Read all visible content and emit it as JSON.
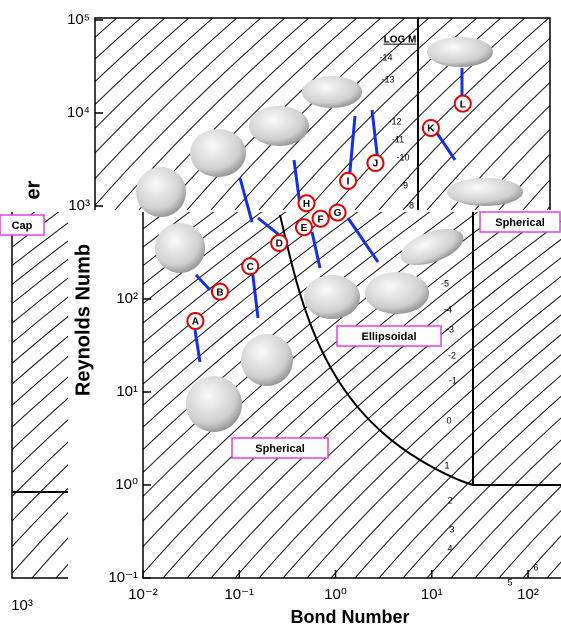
{
  "chart_data": {
    "type": "scatter",
    "x_label": "Bond Number",
    "y_label": "Reynolds Numb",
    "log_x": true,
    "log_y": true,
    "xlim": [
      0.01,
      200
    ],
    "ylim": [
      0.1,
      100000
    ],
    "xticks": [
      {
        "value": 0.01,
        "label": "10⁻²"
      },
      {
        "value": 0.1,
        "label": "10⁻¹"
      },
      {
        "value": 1,
        "label": "10⁰"
      },
      {
        "value": 10,
        "label": "10¹"
      },
      {
        "value": 100,
        "label": "10²"
      }
    ],
    "yticks": [
      {
        "value": 0.1,
        "label": "10⁻¹"
      },
      {
        "value": 1,
        "label": "10⁰"
      },
      {
        "value": 10,
        "label": "10¹"
      },
      {
        "value": 100,
        "label": "10²"
      },
      {
        "value": 1000,
        "label": "10³"
      },
      {
        "value": 10000,
        "label": "10⁴"
      },
      {
        "value": 100000,
        "label": "10⁵"
      }
    ],
    "point_labels": [
      "A",
      "B",
      "C",
      "D",
      "E",
      "F",
      "G",
      "H",
      "I",
      "J",
      "K",
      "L"
    ],
    "x": [
      0.035,
      0.063,
      0.13,
      0.26,
      0.47,
      0.7,
      1.05,
      0.5,
      1.35,
      2.6,
      9.8,
      21
    ],
    "values": [
      58,
      120,
      225,
      400,
      590,
      730,
      850,
      1070,
      1860,
      2900,
      6900,
      12600
    ],
    "color": "#e00000",
    "regime_labels": [
      "Spherical",
      "Ellipsoidal",
      "Spherical"
    ],
    "log_m_title": "LOG M",
    "log_m_labels": [
      "-14",
      "-13",
      "-12",
      "-11",
      "-10",
      "-9",
      "-8",
      "-5",
      "-4",
      "-3",
      "-2",
      "-1",
      "0",
      "1",
      "2",
      "3",
      "4",
      "5",
      "6"
    ],
    "inset": {
      "y_label": "er",
      "regime_label": "Cap",
      "xtick": "10³"
    }
  }
}
